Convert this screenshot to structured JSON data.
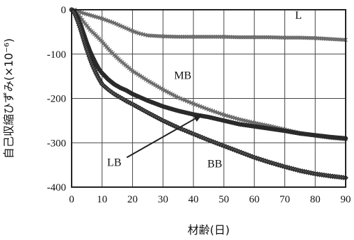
{
  "chart_data": {
    "type": "line",
    "title": "",
    "xlabel": "材齢(日)",
    "ylabel": "自己収縮ひずみ(×10⁻⁶)",
    "xlim": [
      0,
      90
    ],
    "ylim": [
      -400,
      0
    ],
    "xticks": [
      0,
      10,
      20,
      30,
      40,
      50,
      60,
      70,
      80,
      90
    ],
    "yticks": [
      0,
      -100,
      -200,
      -300,
      -400
    ],
    "grid": true,
    "legend": "inline labels",
    "series": [
      {
        "name": "L",
        "marker": "cross",
        "color": "#888888",
        "x": [
          0,
          1,
          2,
          4,
          6,
          8,
          10,
          12,
          14,
          16,
          18,
          20,
          22,
          25,
          30,
          35,
          40,
          45,
          50,
          55,
          60,
          65,
          70,
          75,
          80,
          85,
          90
        ],
        "y": [
          0,
          0,
          -3,
          -8,
          -12,
          -16,
          -20,
          -25,
          -30,
          -36,
          -42,
          -48,
          -53,
          -58,
          -60,
          -61,
          -61,
          -61,
          -61,
          -62,
          -62,
          -62,
          -63,
          -63,
          -64,
          -66,
          -68
        ]
      },
      {
        "name": "MB",
        "marker": "cross",
        "color": "#888888",
        "x": [
          0,
          1,
          2,
          3,
          4,
          5,
          6,
          8,
          10,
          12,
          14,
          16,
          20,
          25,
          30,
          35,
          40,
          45,
          50,
          55,
          60,
          65,
          70,
          75,
          80,
          85,
          90
        ],
        "y": [
          0,
          -2,
          -8,
          -18,
          -28,
          -36,
          -45,
          -58,
          -72,
          -88,
          -102,
          -115,
          -138,
          -160,
          -180,
          -198,
          -212,
          -225,
          -237,
          -247,
          -255,
          -262,
          -270,
          -278,
          -284,
          -289,
          -292
        ]
      },
      {
        "name": "LB",
        "marker": "dot",
        "color": "#3a3a3a",
        "x": [
          0,
          1,
          2,
          3,
          4,
          5,
          6,
          7,
          8,
          9,
          10,
          12,
          14,
          16,
          18,
          20,
          25,
          30,
          35,
          40,
          45,
          50,
          55,
          60,
          65,
          70,
          75,
          80,
          85,
          90
        ],
        "y": [
          0,
          -5,
          -18,
          -35,
          -55,
          -75,
          -93,
          -108,
          -122,
          -134,
          -143,
          -157,
          -168,
          -176,
          -182,
          -190,
          -205,
          -218,
          -228,
          -236,
          -242,
          -250,
          -258,
          -263,
          -268,
          -273,
          -279,
          -283,
          -287,
          -290
        ]
      },
      {
        "name": "BB",
        "marker": "diamond",
        "color": "#3a3a3a",
        "x": [
          0,
          1,
          2,
          3,
          4,
          5,
          6,
          7,
          8,
          9,
          10,
          12,
          14,
          16,
          18,
          20,
          25,
          30,
          35,
          40,
          45,
          50,
          55,
          60,
          65,
          70,
          75,
          80,
          85,
          90
        ],
        "y": [
          0,
          -8,
          -25,
          -45,
          -68,
          -90,
          -110,
          -128,
          -143,
          -156,
          -168,
          -180,
          -190,
          -198,
          -206,
          -213,
          -232,
          -250,
          -266,
          -280,
          -294,
          -307,
          -320,
          -333,
          -344,
          -354,
          -363,
          -370,
          -375,
          -379
        ]
      }
    ],
    "annotations": [
      {
        "text": "L",
        "series": "L"
      },
      {
        "text": "MB",
        "series": "MB"
      },
      {
        "text": "LB",
        "series": "LB",
        "arrow": true
      },
      {
        "text": "BB",
        "series": "BB"
      }
    ]
  }
}
